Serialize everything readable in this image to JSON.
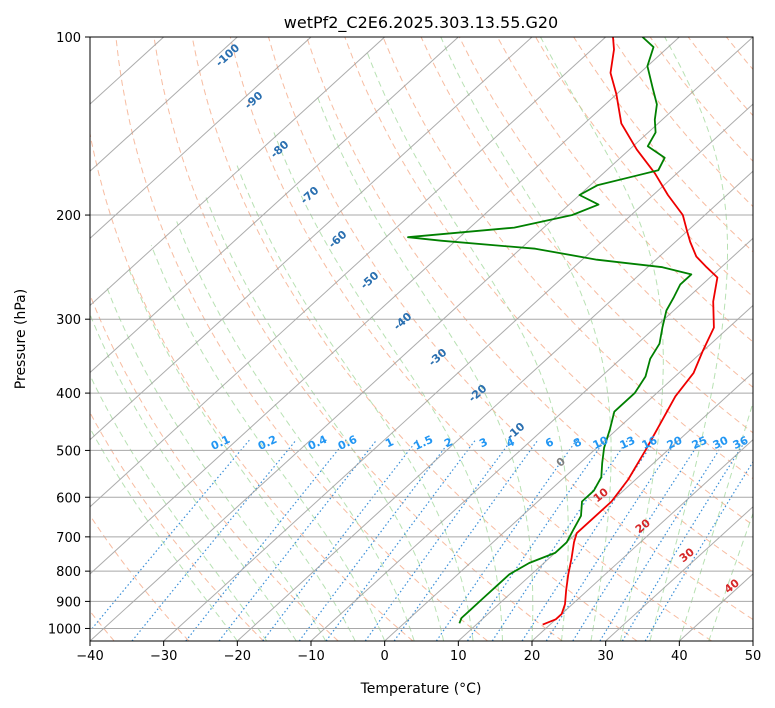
{
  "chart_data": {
    "type": "line",
    "title": "wetPf2_C2E6.2025.303.13.55.G20",
    "xlabel": "Temperature (°C)",
    "ylabel": "Pressure (hPa)",
    "xlim": [
      -40,
      50
    ],
    "ylim": [
      1050,
      100
    ],
    "y_scale": "log",
    "skew": true,
    "grid": true,
    "x_ticks": [
      -40,
      -30,
      -20,
      -10,
      0,
      10,
      20,
      30,
      40,
      50
    ],
    "y_ticks": [
      100,
      200,
      300,
      400,
      500,
      600,
      700,
      800,
      900,
      1000
    ],
    "series": [
      {
        "color": "#ee0000",
        "values": [
          [
            19,
            985
          ],
          [
            20,
            965
          ],
          [
            20,
            945
          ],
          [
            19,
            910
          ],
          [
            17,
            860
          ],
          [
            15,
            810
          ],
          [
            13,
            760
          ],
          [
            11,
            715
          ],
          [
            10,
            690
          ],
          [
            10,
            650
          ],
          [
            10,
            610
          ],
          [
            9,
            560
          ],
          [
            7,
            500
          ],
          [
            5,
            450
          ],
          [
            3,
            405
          ],
          [
            2,
            370
          ],
          [
            0,
            340
          ],
          [
            -2,
            310
          ],
          [
            -6,
            280
          ],
          [
            -9,
            255
          ],
          [
            -12,
            245
          ],
          [
            -15,
            235
          ],
          [
            -18,
            222
          ],
          [
            -20,
            213
          ],
          [
            -23,
            200
          ],
          [
            -28,
            185
          ],
          [
            -33,
            170
          ],
          [
            -39,
            155
          ],
          [
            -45,
            140
          ],
          [
            -50,
            125
          ],
          [
            -54,
            115
          ],
          [
            -57,
            105
          ],
          [
            -59,
            100
          ]
        ]
      },
      {
        "color": "#008000",
        "values": [
          [
            7.5,
            980
          ],
          [
            7,
            960
          ],
          [
            7,
            930
          ],
          [
            7,
            890
          ],
          [
            7,
            850
          ],
          [
            7,
            810
          ],
          [
            8,
            775
          ],
          [
            10,
            745
          ],
          [
            10,
            715
          ],
          [
            9,
            680
          ],
          [
            8,
            645
          ],
          [
            6,
            610
          ],
          [
            6,
            585
          ],
          [
            5,
            555
          ],
          [
            3,
            525
          ],
          [
            1,
            495
          ],
          [
            -1,
            460
          ],
          [
            -3,
            430
          ],
          [
            -3,
            400
          ],
          [
            -4,
            375
          ],
          [
            -6,
            350
          ],
          [
            -7,
            330
          ],
          [
            -9,
            310
          ],
          [
            -11,
            290
          ],
          [
            -12,
            275
          ],
          [
            -13,
            262
          ],
          [
            -13,
            252
          ],
          [
            -18,
            245
          ],
          [
            -28,
            238
          ],
          [
            -38,
            228
          ],
          [
            -52,
            221
          ],
          [
            -57,
            218
          ],
          [
            -44,
            210
          ],
          [
            -38,
            200
          ],
          [
            -36,
            192
          ],
          [
            -40,
            185
          ],
          [
            -39,
            178
          ],
          [
            -33,
            168
          ],
          [
            -34,
            160
          ],
          [
            -38,
            153
          ],
          [
            -39,
            145
          ],
          [
            -41,
            138
          ],
          [
            -43,
            130
          ],
          [
            -46,
            122
          ],
          [
            -50,
            112
          ],
          [
            -52,
            104
          ],
          [
            -55,
            100
          ]
        ]
      }
    ],
    "dry_adiabat_labels": [
      "-100",
      "-90",
      "-80",
      "-70",
      "-60",
      "-50",
      "-40",
      "-30",
      "-20",
      "-10"
    ],
    "mixing_ratio_labels": [
      "0.1",
      "0.2",
      "0.4",
      "0.6",
      "1",
      "1.5",
      "2",
      "3",
      "4",
      "6",
      "8",
      "10",
      "13",
      "16",
      "20",
      "25",
      "30",
      "36"
    ],
    "moist_adiabat_labels": [
      "0",
      "10",
      "20",
      "30",
      "40"
    ],
    "colors": {
      "temperature": "#ee0000",
      "dewpoint": "#008000",
      "dry_adiabat": "#f4a582",
      "moist_adiabat": "#a6d9a0",
      "mixing_ratio": "#3a8fd8",
      "isotherm": "#9e9e9e",
      "isobar": "#a8a8a8",
      "dry_label": "#2a6fb0",
      "mixing_label": "#2196f3",
      "moist_label": "#d62728",
      "zero_label": "#808080"
    }
  }
}
